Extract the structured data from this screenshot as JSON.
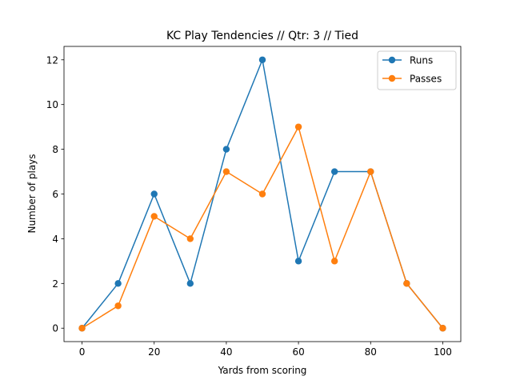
{
  "chart_data": {
    "type": "line",
    "title": "KC Play Tendencies // Qtr: 3 // Tied",
    "xlabel": "Yards from scoring",
    "ylabel": "Number of plays",
    "x": [
      0,
      10,
      20,
      30,
      40,
      50,
      60,
      70,
      80,
      90,
      100
    ],
    "xlim": [
      -5,
      105
    ],
    "ylim": [
      -0.6,
      12.6
    ],
    "xticks": [
      0,
      20,
      40,
      60,
      80,
      100
    ],
    "yticks": [
      0,
      2,
      4,
      6,
      8,
      10,
      12
    ],
    "grid": false,
    "legend_position": "top-right",
    "series": [
      {
        "name": "Runs",
        "color": "#1f77b4",
        "values": [
          0,
          2,
          6,
          2,
          8,
          12,
          3,
          7,
          7,
          2,
          0
        ]
      },
      {
        "name": "Passes",
        "color": "#ff7f0e",
        "values": [
          0,
          1,
          5,
          4,
          7,
          6,
          9,
          3,
          7,
          2,
          0
        ]
      }
    ]
  }
}
